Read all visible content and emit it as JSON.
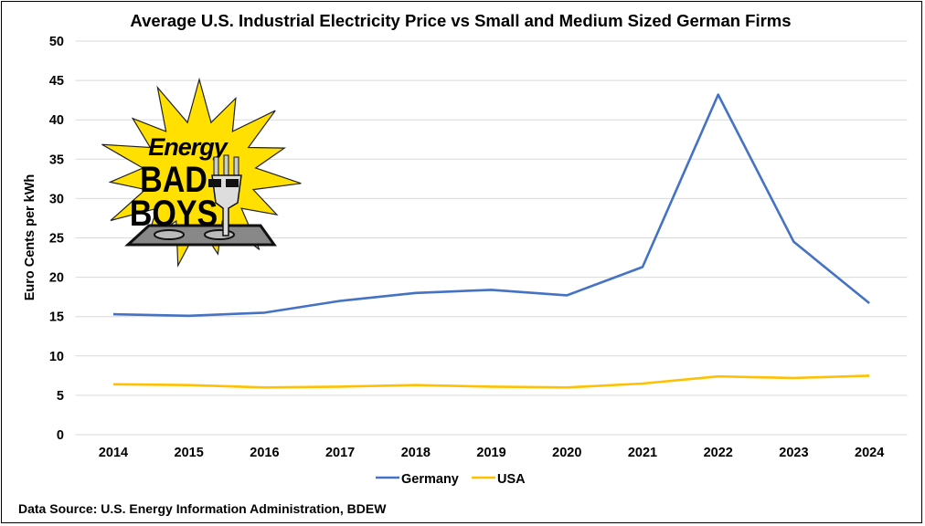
{
  "chart_data": {
    "type": "line",
    "title": "Average U.S. Industrial Electricity Price vs Small and Medium Sized German Firms",
    "xlabel": "",
    "ylabel": "Euro Cents per kWh",
    "ylim": [
      0,
      50
    ],
    "yticks": [
      0,
      5,
      10,
      15,
      20,
      25,
      30,
      35,
      40,
      45,
      50
    ],
    "grid": true,
    "legend_position": "bottom",
    "categories": [
      "2014",
      "2015",
      "2016",
      "2017",
      "2018",
      "2019",
      "2020",
      "2021",
      "2022",
      "2023",
      "2024"
    ],
    "series": [
      {
        "name": "Germany",
        "color": "#4472C4",
        "values": [
          15.3,
          15.1,
          15.5,
          17.0,
          18.0,
          18.4,
          17.7,
          21.3,
          43.2,
          24.5,
          16.7
        ]
      },
      {
        "name": "USA",
        "color": "#FFC000",
        "values": [
          6.4,
          6.3,
          6.0,
          6.1,
          6.3,
          6.1,
          6.0,
          6.5,
          7.4,
          7.2,
          7.5
        ]
      }
    ],
    "source": "Data Source: U.S. Energy Information Administration, BDEW"
  },
  "logo": {
    "text": "Energy BAD BOYS"
  }
}
